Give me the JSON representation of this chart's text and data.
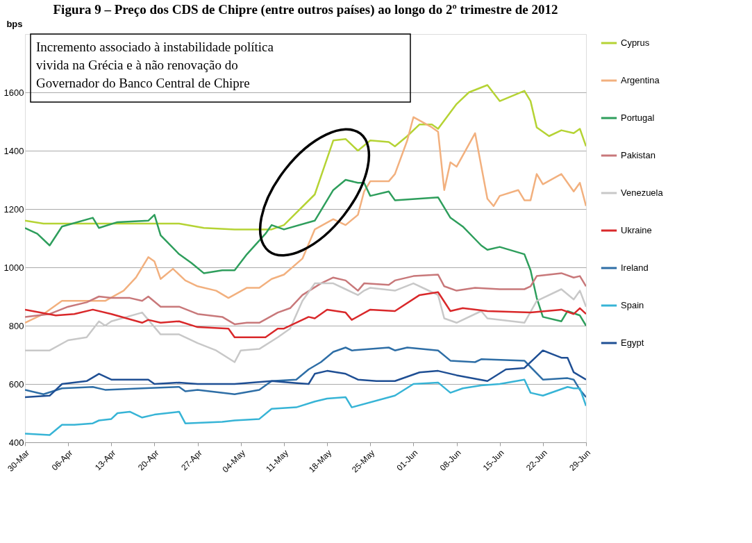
{
  "chart_data": {
    "type": "line",
    "title": "Figura 9 – Preço dos CDS de Chipre (entre outros países) ao longo do 2º trimestre de 2012",
    "ylabel": "bps",
    "annotations": [
      "Incremento associado à instabilidade política vivida na Grécia e à não renovação do Governador do Banco Central de Chipre"
    ],
    "xlim": [
      "2012-03-30",
      "2012-06-29"
    ],
    "xticks": [
      {
        "value": "2012-03-30",
        "label": "30-Mar"
      },
      {
        "value": "2012-04-06",
        "label": "06-Apr"
      },
      {
        "value": "2012-04-13",
        "label": "13-Apr"
      },
      {
        "value": "2012-04-20",
        "label": "20-Apr"
      },
      {
        "value": "2012-04-27",
        "label": "27-Apr"
      },
      {
        "value": "2012-05-04",
        "label": "04-May"
      },
      {
        "value": "2012-05-11",
        "label": "11-May"
      },
      {
        "value": "2012-05-18",
        "label": "18-May"
      },
      {
        "value": "2012-05-25",
        "label": "25-May"
      },
      {
        "value": "2012-06-01",
        "label": "01-Jun"
      },
      {
        "value": "2012-06-08",
        "label": "08-Jun"
      },
      {
        "value": "2012-06-15",
        "label": "15-Jun"
      },
      {
        "value": "2012-06-22",
        "label": "22-Jun"
      },
      {
        "value": "2012-06-29",
        "label": "29-Jun"
      }
    ],
    "ylim": [
      400,
      1800
    ],
    "yticks": [
      400,
      600,
      800,
      1000,
      1200,
      1400,
      1600
    ],
    "grid": "y",
    "legend": "right",
    "line_style": "solid",
    "series": [
      {
        "name": "Cyprus",
        "color": "#b5d334",
        "x": [
          "2012-03-30",
          "2012-04-02",
          "2012-04-10",
          "2012-04-24",
          "2012-04-28",
          "2012-05-03",
          "2012-05-09",
          "2012-05-11",
          "2012-05-16",
          "2012-05-19",
          "2012-05-21",
          "2012-05-23",
          "2012-05-25",
          "2012-05-28",
          "2012-05-29",
          "2012-05-31",
          "2012-06-02",
          "2012-06-04",
          "2012-06-05",
          "2012-06-08",
          "2012-06-10",
          "2012-06-13",
          "2012-06-15",
          "2012-06-19",
          "2012-06-20",
          "2012-06-21",
          "2012-06-23",
          "2012-06-25",
          "2012-06-27",
          "2012-06-28",
          "2012-06-29"
        ],
        "values": [
          1160,
          1150,
          1150,
          1150,
          1135,
          1130,
          1130,
          1145,
          1250,
          1435,
          1440,
          1400,
          1435,
          1430,
          1415,
          1450,
          1490,
          1490,
          1475,
          1560,
          1600,
          1625,
          1570,
          1605,
          1570,
          1480,
          1450,
          1470,
          1460,
          1475,
          1415
        ]
      },
      {
        "name": "Argentina",
        "color": "#f2b07e",
        "x": [
          "2012-03-30",
          "2012-04-02",
          "2012-04-05",
          "2012-04-10",
          "2012-04-12",
          "2012-04-15",
          "2012-04-17",
          "2012-04-19",
          "2012-04-20",
          "2012-04-21",
          "2012-04-23",
          "2012-04-25",
          "2012-04-27",
          "2012-04-30",
          "2012-05-02",
          "2012-05-05",
          "2012-05-07",
          "2012-05-09",
          "2012-05-11",
          "2012-05-14",
          "2012-05-16",
          "2012-05-19",
          "2012-05-21",
          "2012-05-23",
          "2012-05-24",
          "2012-05-25",
          "2012-05-28",
          "2012-05-29",
          "2012-05-31",
          "2012-06-01",
          "2012-06-04",
          "2012-06-05",
          "2012-06-06",
          "2012-06-07",
          "2012-06-08",
          "2012-06-11",
          "2012-06-13",
          "2012-06-14",
          "2012-06-15",
          "2012-06-18",
          "2012-06-19",
          "2012-06-20",
          "2012-06-21",
          "2012-06-22",
          "2012-06-25",
          "2012-06-27",
          "2012-06-28",
          "2012-06-29"
        ],
        "values": [
          810,
          840,
          885,
          885,
          885,
          920,
          965,
          1035,
          1020,
          960,
          995,
          955,
          935,
          920,
          895,
          930,
          930,
          960,
          975,
          1030,
          1130,
          1165,
          1145,
          1180,
          1260,
          1295,
          1295,
          1320,
          1435,
          1515,
          1480,
          1465,
          1265,
          1360,
          1345,
          1460,
          1235,
          1210,
          1245,
          1265,
          1230,
          1230,
          1320,
          1285,
          1320,
          1260,
          1290,
          1210
        ]
      },
      {
        "name": "Portugal",
        "color": "#2e9e5c",
        "x": [
          "2012-03-30",
          "2012-04-01",
          "2012-04-03",
          "2012-04-05",
          "2012-04-10",
          "2012-04-11",
          "2012-04-14",
          "2012-04-19",
          "2012-04-20",
          "2012-04-21",
          "2012-04-24",
          "2012-04-26",
          "2012-04-28",
          "2012-05-01",
          "2012-05-03",
          "2012-05-05",
          "2012-05-08",
          "2012-05-09",
          "2012-05-11",
          "2012-05-16",
          "2012-05-17",
          "2012-05-19",
          "2012-05-21",
          "2012-05-23",
          "2012-05-24",
          "2012-05-25",
          "2012-05-28",
          "2012-05-29",
          "2012-06-05",
          "2012-06-07",
          "2012-06-09",
          "2012-06-12",
          "2012-06-13",
          "2012-06-15",
          "2012-06-19",
          "2012-06-20",
          "2012-06-21",
          "2012-06-22",
          "2012-06-25",
          "2012-06-26",
          "2012-06-28",
          "2012-06-29"
        ],
        "values": [
          1135,
          1115,
          1075,
          1140,
          1170,
          1135,
          1155,
          1160,
          1180,
          1110,
          1045,
          1015,
          980,
          990,
          990,
          1045,
          1115,
          1145,
          1130,
          1160,
          1195,
          1265,
          1300,
          1290,
          1290,
          1245,
          1260,
          1230,
          1240,
          1170,
          1140,
          1075,
          1060,
          1070,
          1045,
          990,
          895,
          830,
          815,
          850,
          835,
          800
        ]
      },
      {
        "name": "Pakistan",
        "color": "#c8787a",
        "x": [
          "2012-03-30",
          "2012-04-03",
          "2012-04-06",
          "2012-04-09",
          "2012-04-11",
          "2012-04-13",
          "2012-04-16",
          "2012-04-18",
          "2012-04-19",
          "2012-04-21",
          "2012-04-24",
          "2012-04-27",
          "2012-05-01",
          "2012-05-03",
          "2012-05-05",
          "2012-05-07",
          "2012-05-10",
          "2012-05-12",
          "2012-05-14",
          "2012-05-17",
          "2012-05-19",
          "2012-05-21",
          "2012-05-23",
          "2012-05-24",
          "2012-05-28",
          "2012-05-29",
          "2012-06-01",
          "2012-06-05",
          "2012-06-06",
          "2012-06-08",
          "2012-06-11",
          "2012-06-15",
          "2012-06-19",
          "2012-06-20",
          "2012-06-21",
          "2012-06-25",
          "2012-06-27",
          "2012-06-28",
          "2012-06-29"
        ],
        "values": [
          830,
          840,
          865,
          880,
          900,
          895,
          895,
          885,
          900,
          865,
          865,
          840,
          830,
          805,
          810,
          810,
          845,
          860,
          905,
          945,
          965,
          955,
          920,
          945,
          940,
          955,
          970,
          975,
          935,
          920,
          930,
          925,
          925,
          935,
          970,
          980,
          965,
          970,
          935
        ]
      },
      {
        "name": "Venezuela",
        "color": "#c8c8c8",
        "x": [
          "2012-03-30",
          "2012-04-03",
          "2012-04-06",
          "2012-04-09",
          "2012-04-11",
          "2012-04-12",
          "2012-04-13",
          "2012-04-18",
          "2012-04-21",
          "2012-04-24",
          "2012-04-27",
          "2012-04-30",
          "2012-05-03",
          "2012-05-04",
          "2012-05-07",
          "2012-05-10",
          "2012-05-12",
          "2012-05-14",
          "2012-05-16",
          "2012-05-19",
          "2012-05-21",
          "2012-05-23",
          "2012-05-24",
          "2012-05-25",
          "2012-05-29",
          "2012-06-01",
          "2012-06-03",
          "2012-06-05",
          "2012-06-06",
          "2012-06-08",
          "2012-06-12",
          "2012-06-13",
          "2012-06-19",
          "2012-06-21",
          "2012-06-25",
          "2012-06-27",
          "2012-06-28",
          "2012-06-29"
        ],
        "values": [
          715,
          715,
          750,
          760,
          815,
          800,
          815,
          845,
          770,
          770,
          740,
          715,
          675,
          715,
          720,
          760,
          790,
          885,
          945,
          945,
          925,
          905,
          920,
          930,
          920,
          945,
          925,
          905,
          825,
          810,
          850,
          825,
          810,
          885,
          925,
          890,
          920,
          865
        ]
      },
      {
        "name": "Ukraine",
        "color": "#d9282a",
        "x": [
          "2012-03-30",
          "2012-04-04",
          "2012-04-07",
          "2012-04-10",
          "2012-04-13",
          "2012-04-18",
          "2012-04-19",
          "2012-04-21",
          "2012-04-24",
          "2012-04-27",
          "2012-05-02",
          "2012-05-03",
          "2012-05-08",
          "2012-05-10",
          "2012-05-11",
          "2012-05-15",
          "2012-05-16",
          "2012-05-18",
          "2012-05-21",
          "2012-05-22",
          "2012-05-25",
          "2012-05-29",
          "2012-06-02",
          "2012-06-05",
          "2012-06-07",
          "2012-06-09",
          "2012-06-13",
          "2012-06-20",
          "2012-06-25",
          "2012-06-27",
          "2012-06-28",
          "2012-06-29"
        ],
        "values": [
          855,
          835,
          840,
          855,
          840,
          810,
          820,
          810,
          815,
          795,
          790,
          760,
          760,
          790,
          790,
          830,
          825,
          855,
          845,
          820,
          855,
          850,
          905,
          915,
          850,
          860,
          850,
          845,
          855,
          840,
          860,
          840
        ]
      },
      {
        "name": "Ireland",
        "color": "#2e6ea6",
        "x": [
          "2012-03-30",
          "2012-04-02",
          "2012-04-05",
          "2012-04-10",
          "2012-04-12",
          "2012-04-18",
          "2012-04-24",
          "2012-04-25",
          "2012-04-27",
          "2012-05-03",
          "2012-05-07",
          "2012-05-09",
          "2012-05-13",
          "2012-05-15",
          "2012-05-17",
          "2012-05-19",
          "2012-05-21",
          "2012-05-22",
          "2012-05-28",
          "2012-05-29",
          "2012-05-31",
          "2012-06-05",
          "2012-06-07",
          "2012-06-11",
          "2012-06-12",
          "2012-06-19",
          "2012-06-22",
          "2012-06-26",
          "2012-06-27",
          "2012-06-28",
          "2012-06-29"
        ],
        "values": [
          580,
          565,
          585,
          590,
          580,
          585,
          590,
          575,
          580,
          565,
          580,
          610,
          615,
          650,
          675,
          710,
          725,
          715,
          725,
          715,
          725,
          715,
          680,
          675,
          685,
          680,
          615,
          620,
          615,
          580,
          555
        ]
      },
      {
        "name": "Spain",
        "color": "#37b4d6",
        "x": [
          "2012-03-30",
          "2012-04-03",
          "2012-04-05",
          "2012-04-07",
          "2012-04-10",
          "2012-04-11",
          "2012-04-13",
          "2012-04-14",
          "2012-04-16",
          "2012-04-18",
          "2012-04-20",
          "2012-04-24",
          "2012-04-25",
          "2012-05-01",
          "2012-05-03",
          "2012-05-07",
          "2012-05-09",
          "2012-05-13",
          "2012-05-16",
          "2012-05-18",
          "2012-05-21",
          "2012-05-22",
          "2012-05-29",
          "2012-06-01",
          "2012-06-05",
          "2012-06-07",
          "2012-06-09",
          "2012-06-12",
          "2012-06-15",
          "2012-06-19",
          "2012-06-20",
          "2012-06-22",
          "2012-06-26",
          "2012-06-27",
          "2012-06-28",
          "2012-06-29"
        ],
        "values": [
          430,
          425,
          460,
          460,
          465,
          475,
          480,
          500,
          505,
          485,
          495,
          505,
          465,
          470,
          475,
          480,
          515,
          520,
          540,
          550,
          555,
          520,
          560,
          600,
          605,
          570,
          585,
          595,
          600,
          615,
          570,
          560,
          590,
          585,
          585,
          525
        ]
      },
      {
        "name": "Egypt",
        "color": "#1f4f94",
        "x": [
          "2012-03-30",
          "2012-04-03",
          "2012-04-05",
          "2012-04-09",
          "2012-04-11",
          "2012-04-13",
          "2012-04-19",
          "2012-04-20",
          "2012-04-24",
          "2012-04-27",
          "2012-05-03",
          "2012-05-09",
          "2012-05-12",
          "2012-05-15",
          "2012-05-16",
          "2012-05-18",
          "2012-05-21",
          "2012-05-23",
          "2012-05-26",
          "2012-05-29",
          "2012-06-02",
          "2012-06-05",
          "2012-06-08",
          "2012-06-13",
          "2012-06-16",
          "2012-06-19",
          "2012-06-22",
          "2012-06-25",
          "2012-06-26",
          "2012-06-27",
          "2012-06-29"
        ],
        "values": [
          555,
          560,
          600,
          610,
          635,
          615,
          615,
          600,
          605,
          600,
          600,
          610,
          605,
          600,
          635,
          645,
          635,
          615,
          610,
          610,
          640,
          645,
          630,
          610,
          650,
          655,
          715,
          690,
          690,
          640,
          615
        ]
      }
    ]
  }
}
